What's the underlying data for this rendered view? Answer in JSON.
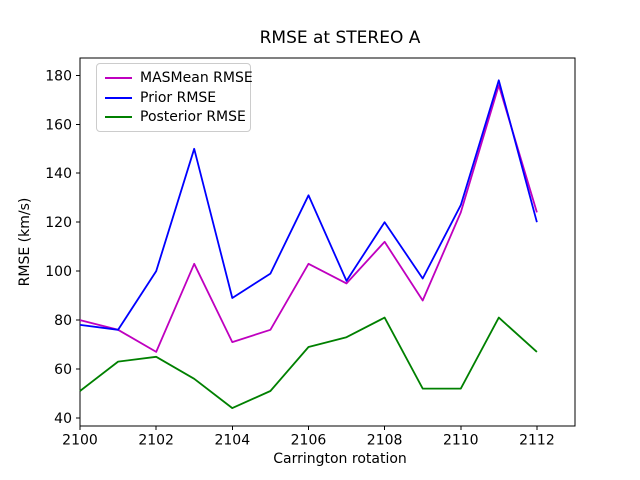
{
  "chart_data": {
    "type": "line",
    "title": "RMSE at STEREO A",
    "xlabel": "Carrington rotation",
    "ylabel": "RMSE (km/s)",
    "x": [
      2100,
      2101,
      2102,
      2103,
      2104,
      2105,
      2106,
      2107,
      2108,
      2109,
      2110,
      2111,
      2112
    ],
    "series": [
      {
        "name": "MASMean RMSE",
        "color": "#bf00bf",
        "values": [
          80,
          76,
          67,
          103,
          71,
          76,
          103,
          95,
          112,
          88,
          124,
          176,
          124
        ]
      },
      {
        "name": "Prior RMSE",
        "color": "#0000ff",
        "values": [
          78,
          76,
          100,
          150,
          89,
          99,
          131,
          96,
          120,
          97,
          127,
          178,
          120
        ]
      },
      {
        "name": "Posterior RMSE",
        "color": "#008000",
        "values": [
          51,
          63,
          65,
          56,
          44,
          51,
          69,
          73,
          81,
          52,
          52,
          81,
          67
        ]
      }
    ],
    "xticks": [
      2100,
      2102,
      2104,
      2106,
      2108,
      2110,
      2112
    ],
    "yticks": [
      40,
      60,
      80,
      100,
      120,
      140,
      160,
      180
    ],
    "xlim": [
      2100,
      2113
    ],
    "ylim": [
      36.7,
      187.1
    ],
    "grid": false,
    "legend_position": "upper left",
    "axis_color": "#000000",
    "background_color": "#ffffff"
  }
}
